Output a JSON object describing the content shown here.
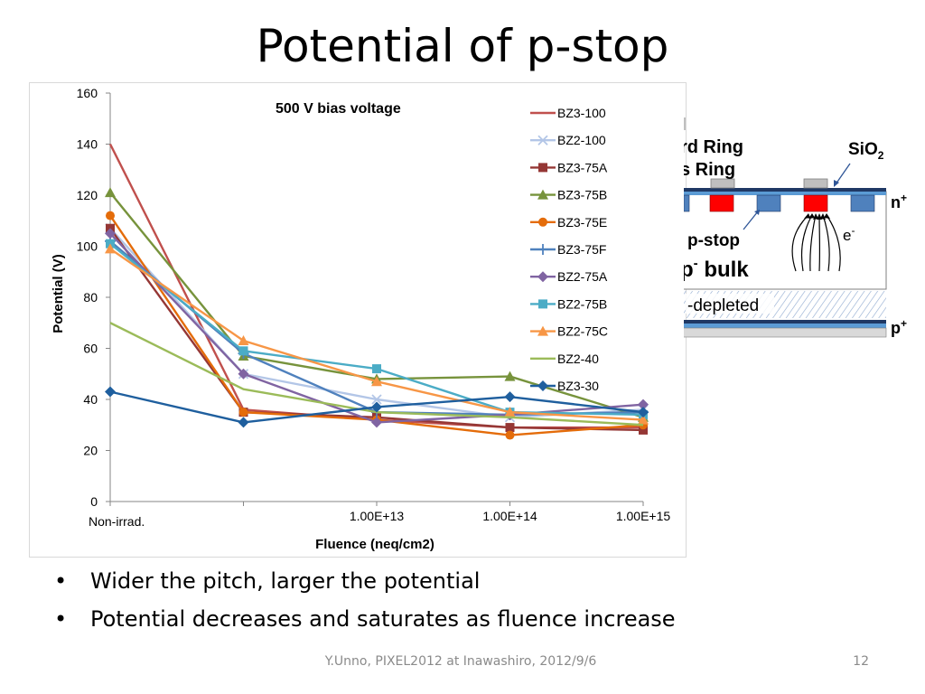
{
  "slide": {
    "title": "Potential of p-stop",
    "bullets": [
      "Wider the pitch, larger the potential",
      "Potential decreases and saturates as fluence increase"
    ],
    "footer": "Y.Unno, PIXEL2012 at Inawashiro, 2012/9/6",
    "page_number": "12"
  },
  "chart_data": {
    "type": "line",
    "title": "500 V bias voltage",
    "xlabel": "Fluence (neq/cm2)",
    "ylabel": "Potential (V)",
    "categories": [
      "Non-irrad.",
      "",
      "1.00E+13",
      "1.00E+14",
      "1.00E+15"
    ],
    "x_tick_labels": [
      "Non-irrad.",
      "1.00E+13",
      "1.00E+14",
      "1.00E+15"
    ],
    "y_ticks": [
      "0",
      "20",
      "40",
      "60",
      "80",
      "100",
      "120",
      "140",
      "160"
    ],
    "ylim": [
      0,
      160
    ],
    "grid": false,
    "legend_position": "right",
    "series": [
      {
        "name": "BZ3-100",
        "color": "#c0504d",
        "marker": "none",
        "values": [
          140,
          36,
          32,
          29,
          29
        ]
      },
      {
        "name": "BZ2-100",
        "color": "#b3c6e7",
        "marker": "x",
        "values": [
          107,
          50,
          40,
          33,
          36
        ]
      },
      {
        "name": "BZ3-75A",
        "color": "#953735",
        "marker": "square",
        "values": [
          107,
          35,
          33,
          29,
          28
        ]
      },
      {
        "name": "BZ3-75B",
        "color": "#77933c",
        "marker": "triangle",
        "values": [
          121,
          57,
          48,
          49,
          33
        ]
      },
      {
        "name": "BZ3-75E",
        "color": "#e46c0a",
        "marker": "circle",
        "values": [
          112,
          35,
          32,
          26,
          30
        ]
      },
      {
        "name": "BZ3-75F",
        "color": "#4f81bd",
        "marker": "plus",
        "values": [
          102,
          58,
          35,
          34,
          35
        ]
      },
      {
        "name": "BZ2-75A",
        "color": "#8064a2",
        "marker": "diamond",
        "values": [
          105,
          50,
          31,
          34,
          38
        ]
      },
      {
        "name": "BZ2-75B",
        "color": "#4bacc6",
        "marker": "square",
        "values": [
          101,
          59,
          52,
          35,
          34
        ]
      },
      {
        "name": "BZ2-75C",
        "color": "#f79646",
        "marker": "triangle",
        "values": [
          99,
          63,
          47,
          35,
          32
        ]
      },
      {
        "name": "BZ2-40",
        "color": "#9bbb59",
        "marker": "none",
        "values": [
          70,
          44,
          35,
          33,
          30
        ]
      },
      {
        "name": "BZ3-30",
        "color": "#1f5f9e",
        "marker": "diamond",
        "values": [
          43,
          31,
          37,
          41,
          35
        ]
      }
    ]
  },
  "diagram": {
    "labels": {
      "guard_ring": "rd Ring",
      "bias_ring": "s Ring",
      "sio2": "SiO",
      "sio2_sub": "2",
      "n_plus": "n",
      "n_plus_sup": "+",
      "electron": "e",
      "electron_sup": "-",
      "p_stop": "p-stop",
      "p_bulk": "p",
      "p_bulk_sup": "-",
      "p_bulk_suffix": " bulk",
      "depleted": "-depleted",
      "p_plus": "p",
      "p_plus_sup": "+"
    },
    "colors": {
      "implant_red": "#ff0000",
      "strip_blue": "#4f81bd",
      "oxide_blue": "#5b9bd5",
      "oxide_dark": "#1f3864",
      "metal_grey": "#bfbfbf",
      "arrow_blue": "#2e5597"
    }
  }
}
